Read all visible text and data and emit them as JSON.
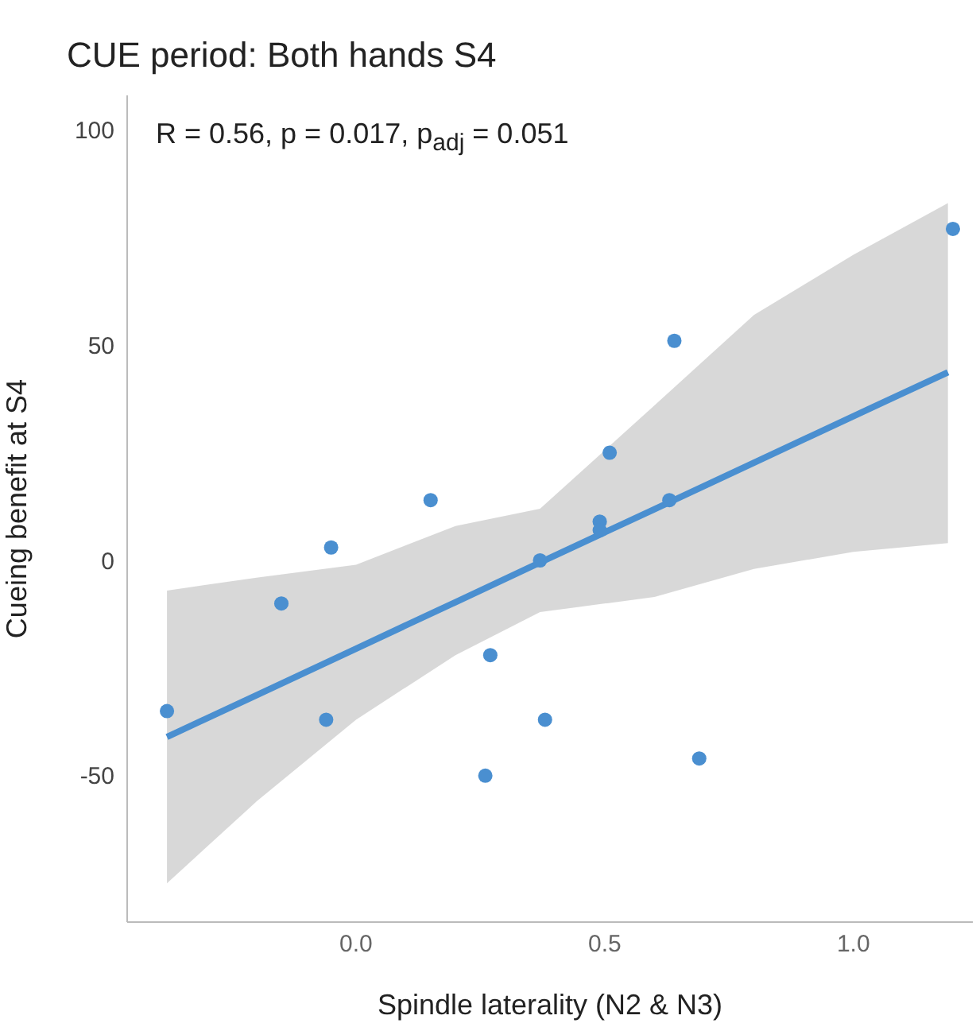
{
  "chart_data": {
    "type": "scatter",
    "title": "CUE period: Both hands S4",
    "xlabel": "Spindle laterality (N2 & N3)",
    "ylabel": "Cueing benefit at S4",
    "annotations": [
      "R = 0.56, p = 0.017, p$_{adj}$ = 0.051"
    ],
    "x": [
      -0.38,
      -0.15,
      -0.05,
      -0.06,
      0.15,
      0.27,
      0.26,
      0.38,
      0.69,
      0.37,
      0.49,
      0.49,
      0.63,
      0.51,
      0.64,
      1.2
    ],
    "series": [
      {
        "marker": "circle",
        "color": "#4a8fd0",
        "values": [
          -35,
          -10,
          3,
          -37,
          14,
          -22,
          -50,
          -37,
          -46,
          0,
          9,
          7,
          14,
          25,
          51,
          77
        ]
      },
      {
        "type": "line",
        "marker": "none",
        "color": "#4a8fd0",
        "x": [
          -0.38,
          -0.2,
          0,
          0.2,
          0.37,
          0.6,
          0.8,
          1.0,
          1.19
        ],
        "values": [
          -41,
          -31.3,
          -20.5,
          -9.7,
          -0.5,
          11.9,
          22.7,
          33.5,
          43.7
        ],
        "lower": [
          -75,
          -56,
          -37,
          -22,
          -12,
          -8.5,
          -2,
          2,
          4
        ],
        "upper": [
          -7,
          -4,
          -1,
          8,
          12,
          36,
          57,
          71,
          83
        ]
      }
    ],
    "xlim": [
      -0.46,
      1.24
    ],
    "xticks": [
      {
        "value": 0,
        "label": "0.0"
      },
      {
        "value": 0.5,
        "label": "0.5"
      },
      {
        "value": 1,
        "label": "1.0"
      }
    ],
    "ylim": [
      -84,
      108
    ],
    "yticks": [
      -50,
      0,
      50,
      100
    ],
    "grid": false,
    "legend": false
  }
}
